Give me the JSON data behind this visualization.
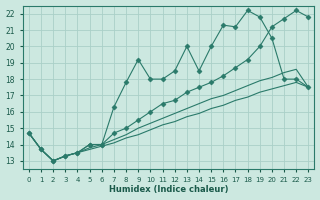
{
  "xlabel": "Humidex (Indice chaleur)",
  "xlim_min": -0.5,
  "xlim_max": 23.5,
  "ylim_min": 12.5,
  "ylim_max": 22.5,
  "xticks": [
    0,
    1,
    2,
    3,
    4,
    5,
    6,
    7,
    8,
    9,
    10,
    11,
    12,
    13,
    14,
    15,
    16,
    17,
    18,
    19,
    20,
    21,
    22,
    23
  ],
  "yticks": [
    13,
    14,
    15,
    16,
    17,
    18,
    19,
    20,
    21,
    22
  ],
  "bg_color": "#cce8e0",
  "grid_color": "#aad0c8",
  "line_color": "#2a7a6a",
  "lines": [
    {
      "x": [
        0,
        1,
        2,
        3,
        4,
        5,
        6,
        7,
        8,
        9,
        10,
        11,
        12,
        13,
        14,
        15,
        16,
        17,
        18,
        19,
        20,
        21,
        22,
        23
      ],
      "y": [
        14.7,
        13.7,
        13.0,
        13.3,
        13.5,
        14.0,
        14.0,
        16.3,
        17.8,
        19.2,
        18.0,
        18.0,
        18.5,
        20.0,
        18.5,
        20.0,
        21.3,
        21.2,
        22.2,
        21.8,
        20.5,
        18.0,
        18.0,
        17.5
      ],
      "marker": "D",
      "markersize": 2.5
    },
    {
      "x": [
        0,
        1,
        2,
        3,
        4,
        5,
        6,
        7,
        8,
        9,
        10,
        11,
        12,
        13,
        14,
        15,
        16,
        17,
        18,
        19,
        20,
        21,
        22,
        23
      ],
      "y": [
        14.7,
        13.7,
        13.0,
        13.3,
        13.5,
        14.0,
        14.0,
        14.7,
        15.0,
        15.5,
        16.0,
        16.5,
        16.7,
        17.2,
        17.5,
        17.8,
        18.2,
        18.7,
        19.2,
        20.0,
        21.2,
        21.7,
        22.2,
        21.8
      ],
      "marker": "D",
      "markersize": 2.5
    },
    {
      "x": [
        0,
        1,
        2,
        3,
        4,
        5,
        6,
        7,
        8,
        9,
        10,
        11,
        12,
        13,
        14,
        15,
        16,
        17,
        18,
        19,
        20,
        21,
        22,
        23
      ],
      "y": [
        14.7,
        13.7,
        13.0,
        13.3,
        13.5,
        13.7,
        13.9,
        14.1,
        14.4,
        14.6,
        14.9,
        15.2,
        15.4,
        15.7,
        15.9,
        16.2,
        16.4,
        16.7,
        16.9,
        17.2,
        17.4,
        17.6,
        17.8,
        17.5
      ],
      "marker": null,
      "markersize": 0
    },
    {
      "x": [
        0,
        1,
        2,
        3,
        4,
        5,
        6,
        7,
        8,
        9,
        10,
        11,
        12,
        13,
        14,
        15,
        16,
        17,
        18,
        19,
        20,
        21,
        22,
        23
      ],
      "y": [
        14.7,
        13.7,
        13.0,
        13.3,
        13.5,
        13.8,
        14.0,
        14.3,
        14.6,
        15.0,
        15.3,
        15.6,
        15.9,
        16.2,
        16.5,
        16.8,
        17.0,
        17.3,
        17.6,
        17.9,
        18.1,
        18.4,
        18.6,
        17.5
      ],
      "marker": null,
      "markersize": 0
    }
  ]
}
